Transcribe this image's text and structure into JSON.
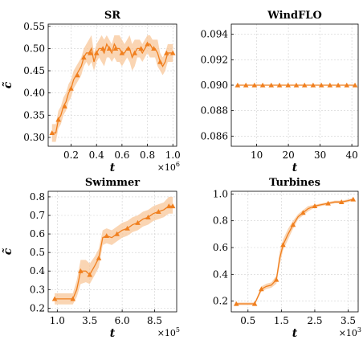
{
  "colors": {
    "line": "#f07f1e",
    "band": "#f8c79a",
    "grid": "#d0d0d0"
  },
  "chart_data": [
    {
      "type": "line",
      "title": "SR",
      "xlabel": "t",
      "ylabel": "c̃",
      "x_multiplier": "×10",
      "x_multiplier_exp": "6",
      "xlim": [
        0.02,
        1.03
      ],
      "ylim": [
        0.28,
        0.555
      ],
      "xticks": [
        0.2,
        0.4,
        0.6,
        0.8,
        1.0
      ],
      "xtick_labels": [
        "0.2",
        "0.4",
        "0.6",
        "0.8",
        "1.0"
      ],
      "yticks": [
        0.3,
        0.35,
        0.4,
        0.45,
        0.5,
        0.55
      ],
      "ytick_labels": [
        "0.30",
        "0.35",
        "0.40",
        "0.45",
        "0.50",
        "0.55"
      ],
      "grid": true,
      "series": [
        {
          "x": [
            0.05,
            0.08,
            0.1,
            0.12,
            0.14,
            0.16,
            0.18,
            0.2,
            0.22,
            0.24,
            0.26,
            0.28,
            0.3,
            0.32,
            0.34,
            0.36,
            0.38,
            0.4,
            0.42,
            0.44,
            0.46,
            0.48,
            0.5,
            0.52,
            0.54,
            0.56,
            0.58,
            0.6,
            0.62,
            0.64,
            0.66,
            0.68,
            0.7,
            0.72,
            0.74,
            0.76,
            0.78,
            0.8,
            0.82,
            0.84,
            0.86,
            0.88,
            0.9,
            0.92,
            0.94,
            0.96,
            0.98,
            1.0
          ],
          "y": [
            0.31,
            0.31,
            0.34,
            0.35,
            0.37,
            0.38,
            0.4,
            0.41,
            0.43,
            0.44,
            0.45,
            0.46,
            0.48,
            0.49,
            0.49,
            0.5,
            0.47,
            0.49,
            0.5,
            0.5,
            0.49,
            0.51,
            0.5,
            0.49,
            0.51,
            0.5,
            0.5,
            0.49,
            0.49,
            0.5,
            0.5,
            0.48,
            0.49,
            0.5,
            0.5,
            0.49,
            0.5,
            0.51,
            0.51,
            0.5,
            0.5,
            0.49,
            0.47,
            0.46,
            0.47,
            0.49,
            0.49,
            0.49
          ],
          "lower": [
            0.29,
            0.29,
            0.32,
            0.33,
            0.35,
            0.36,
            0.38,
            0.39,
            0.41,
            0.42,
            0.43,
            0.44,
            0.46,
            0.47,
            0.46,
            0.47,
            0.45,
            0.47,
            0.48,
            0.47,
            0.46,
            0.48,
            0.48,
            0.47,
            0.48,
            0.47,
            0.47,
            0.46,
            0.47,
            0.48,
            0.47,
            0.45,
            0.46,
            0.48,
            0.48,
            0.47,
            0.48,
            0.49,
            0.48,
            0.48,
            0.48,
            0.46,
            0.45,
            0.44,
            0.45,
            0.47,
            0.47,
            0.47
          ],
          "upper": [
            0.33,
            0.33,
            0.36,
            0.37,
            0.39,
            0.4,
            0.42,
            0.43,
            0.45,
            0.46,
            0.47,
            0.48,
            0.5,
            0.51,
            0.52,
            0.53,
            0.49,
            0.51,
            0.52,
            0.53,
            0.52,
            0.53,
            0.52,
            0.51,
            0.53,
            0.53,
            0.53,
            0.52,
            0.51,
            0.52,
            0.53,
            0.51,
            0.52,
            0.52,
            0.52,
            0.51,
            0.52,
            0.53,
            0.53,
            0.52,
            0.52,
            0.52,
            0.49,
            0.48,
            0.49,
            0.51,
            0.51,
            0.51
          ],
          "marker_x": [
            0.05,
            0.1,
            0.15,
            0.2,
            0.25,
            0.3,
            0.35,
            0.4,
            0.45,
            0.5,
            0.55,
            0.6,
            0.65,
            0.7,
            0.75,
            0.8,
            0.85,
            0.9,
            0.95,
            1.0
          ],
          "marker_y": [
            0.31,
            0.34,
            0.37,
            0.41,
            0.44,
            0.48,
            0.49,
            0.49,
            0.5,
            0.5,
            0.5,
            0.49,
            0.5,
            0.49,
            0.5,
            0.51,
            0.5,
            0.47,
            0.49,
            0.49
          ]
        }
      ]
    },
    {
      "type": "line",
      "title": "WindFLO",
      "xlabel": "t",
      "ylabel": "",
      "x_multiplier": "",
      "x_multiplier_exp": "",
      "xlim": [
        2,
        42
      ],
      "ylim": [
        0.0852,
        0.0948
      ],
      "xticks": [
        10,
        20,
        30,
        40
      ],
      "xtick_labels": [
        "10",
        "20",
        "30",
        "40"
      ],
      "yticks": [
        0.086,
        0.088,
        0.09,
        0.092,
        0.094
      ],
      "ytick_labels": [
        "0.086",
        "0.088",
        "0.090",
        "0.092",
        "0.094"
      ],
      "grid": true,
      "series": [
        {
          "x": [
            4,
            41
          ],
          "y": [
            0.09,
            0.09
          ],
          "lower": [
            0.09,
            0.09
          ],
          "upper": [
            0.09,
            0.09
          ],
          "marker_x": [
            4,
            6.6,
            9.3,
            11.9,
            14.6,
            17.2,
            19.9,
            22.5,
            25.1,
            27.8,
            30.4,
            33.1,
            35.7,
            38.4,
            41
          ],
          "marker_y": [
            0.09,
            0.09,
            0.09,
            0.09,
            0.09,
            0.09,
            0.09,
            0.09,
            0.09,
            0.09,
            0.09,
            0.09,
            0.09,
            0.09,
            0.09
          ]
        }
      ]
    },
    {
      "type": "line",
      "title": "Swimmer",
      "xlabel": "t",
      "ylabel": "c̃",
      "x_multiplier": "×10",
      "x_multiplier_exp": "5",
      "xlim": [
        0.3,
        10.2
      ],
      "ylim": [
        0.18,
        0.83
      ],
      "xticks": [
        1.0,
        3.5,
        6.0,
        8.5
      ],
      "xtick_labels": [
        "1.0",
        "3.5",
        "6.0",
        "8.5"
      ],
      "yticks": [
        0.2,
        0.3,
        0.4,
        0.5,
        0.6,
        0.7,
        0.8
      ],
      "ytick_labels": [
        "0.2",
        "0.3",
        "0.4",
        "0.5",
        "0.6",
        "0.7",
        "0.8"
      ],
      "grid": true,
      "series": [
        {
          "x": [
            0.8,
            1.5,
            2.2,
            2.5,
            2.8,
            3.2,
            3.5,
            3.9,
            4.2,
            4.5,
            4.8,
            5.2,
            5.6,
            6.0,
            6.4,
            6.8,
            7.2,
            7.6,
            8.0,
            8.4,
            8.8,
            9.2,
            9.6,
            9.9
          ],
          "y": [
            0.25,
            0.25,
            0.25,
            0.3,
            0.4,
            0.4,
            0.38,
            0.43,
            0.47,
            0.58,
            0.59,
            0.58,
            0.6,
            0.62,
            0.63,
            0.65,
            0.66,
            0.68,
            0.69,
            0.71,
            0.72,
            0.73,
            0.75,
            0.75
          ],
          "lower": [
            0.22,
            0.22,
            0.22,
            0.26,
            0.33,
            0.34,
            0.33,
            0.38,
            0.42,
            0.54,
            0.55,
            0.54,
            0.56,
            0.58,
            0.59,
            0.61,
            0.62,
            0.64,
            0.65,
            0.67,
            0.68,
            0.69,
            0.71,
            0.71
          ],
          "upper": [
            0.28,
            0.28,
            0.28,
            0.35,
            0.46,
            0.46,
            0.44,
            0.48,
            0.52,
            0.62,
            0.63,
            0.62,
            0.64,
            0.66,
            0.67,
            0.69,
            0.7,
            0.72,
            0.73,
            0.75,
            0.76,
            0.77,
            0.8,
            0.8
          ],
          "marker_x": [
            0.8,
            2.2,
            2.8,
            3.5,
            4.2,
            4.8,
            5.6,
            6.4,
            7.2,
            8.0,
            8.8,
            9.6,
            9.9
          ],
          "marker_y": [
            0.25,
            0.25,
            0.4,
            0.38,
            0.47,
            0.59,
            0.6,
            0.63,
            0.66,
            0.69,
            0.72,
            0.75,
            0.75
          ]
        }
      ]
    },
    {
      "type": "line",
      "title": "Turbines",
      "xlabel": "t",
      "ylabel": "",
      "x_multiplier": "×10",
      "x_multiplier_exp": "3",
      "xlim": [
        0.0,
        3.8
      ],
      "ylim": [
        0.12,
        1.02
      ],
      "xticks": [
        0.5,
        1.5,
        2.5,
        3.5
      ],
      "xtick_labels": [
        "0.5",
        "1.5",
        "2.5",
        "3.5"
      ],
      "yticks": [
        0.2,
        0.4,
        0.6,
        0.8,
        1.0
      ],
      "ytick_labels": [
        "0.2",
        "0.4",
        "0.6",
        "0.8",
        "1.0"
      ],
      "grid": true,
      "series": [
        {
          "x": [
            0.15,
            0.4,
            0.7,
            0.9,
            1.05,
            1.2,
            1.35,
            1.45,
            1.55,
            1.7,
            1.85,
            2.0,
            2.15,
            2.3,
            2.5,
            2.7,
            2.9,
            3.1,
            3.3,
            3.5,
            3.65
          ],
          "y": [
            0.18,
            0.18,
            0.18,
            0.29,
            0.31,
            0.32,
            0.36,
            0.52,
            0.62,
            0.7,
            0.77,
            0.83,
            0.86,
            0.89,
            0.91,
            0.92,
            0.93,
            0.94,
            0.94,
            0.95,
            0.96
          ],
          "lower": [
            0.17,
            0.17,
            0.17,
            0.27,
            0.29,
            0.3,
            0.33,
            0.47,
            0.58,
            0.66,
            0.74,
            0.81,
            0.84,
            0.87,
            0.9,
            0.91,
            0.92,
            0.93,
            0.93,
            0.94,
            0.95
          ],
          "upper": [
            0.19,
            0.19,
            0.19,
            0.31,
            0.33,
            0.34,
            0.39,
            0.57,
            0.66,
            0.74,
            0.8,
            0.85,
            0.88,
            0.91,
            0.92,
            0.93,
            0.94,
            0.95,
            0.95,
            0.96,
            0.97
          ],
          "marker_x": [
            0.15,
            0.7,
            0.9,
            1.35,
            1.55,
            1.85,
            2.15,
            2.5,
            2.9,
            3.3,
            3.65
          ],
          "marker_y": [
            0.18,
            0.18,
            0.29,
            0.36,
            0.62,
            0.77,
            0.86,
            0.91,
            0.93,
            0.94,
            0.96
          ]
        }
      ]
    }
  ]
}
